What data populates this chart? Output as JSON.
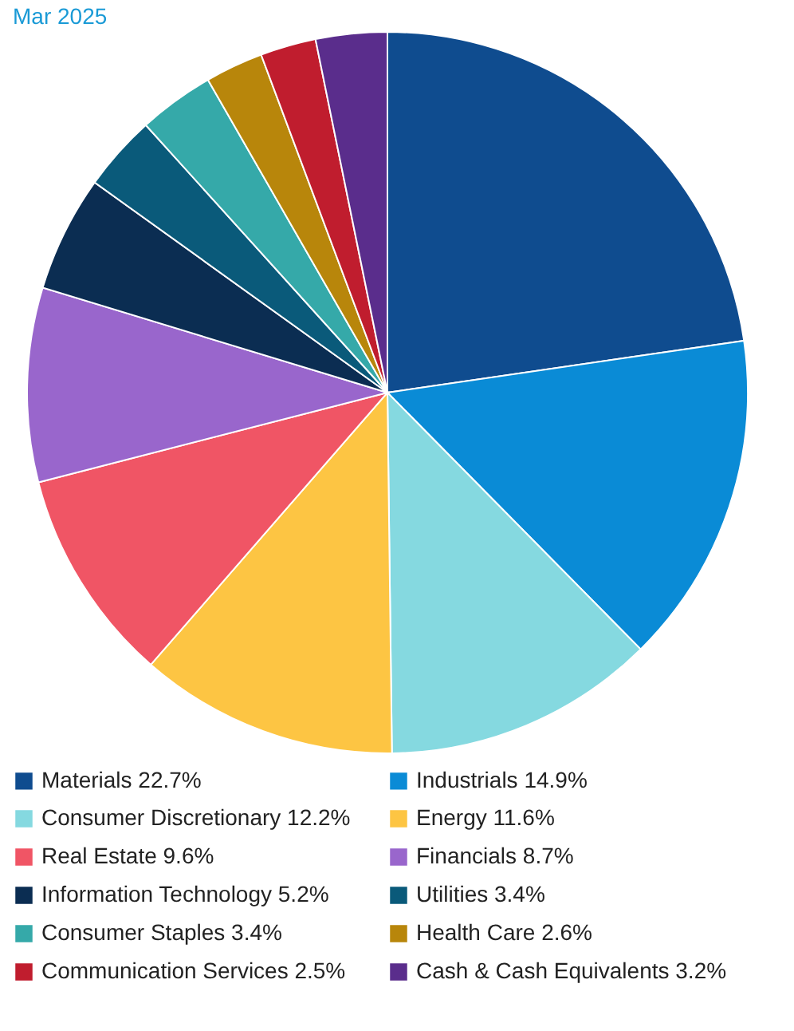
{
  "chart_data": {
    "type": "pie",
    "title": "Mar 2025",
    "categories": [
      "Materials",
      "Industrials",
      "Consumer Discretionary",
      "Energy",
      "Real Estate",
      "Financials",
      "Information Technology",
      "Utilities",
      "Consumer Staples",
      "Health Care",
      "Communication Services",
      "Cash & Cash Equivalents"
    ],
    "values": [
      22.7,
      14.9,
      12.2,
      11.6,
      9.6,
      8.7,
      5.2,
      3.4,
      3.4,
      2.6,
      2.5,
      3.2
    ],
    "value_labels": [
      "22.7%",
      "14.9%",
      "12.2%",
      "11.6%",
      "9.6%",
      "8.7%",
      "5.2%",
      "3.4%",
      "3.4%",
      "2.6%",
      "2.5%",
      "3.2%"
    ],
    "colors": [
      "#0f4c8f",
      "#0a8bd6",
      "#85d9e0",
      "#fdc543",
      "#f05565",
      "#9966cc",
      "#0b2d52",
      "#0a5a7a",
      "#35a9a9",
      "#b8860b",
      "#c01d2e",
      "#5a2d8c"
    ],
    "legend": "bottom"
  }
}
